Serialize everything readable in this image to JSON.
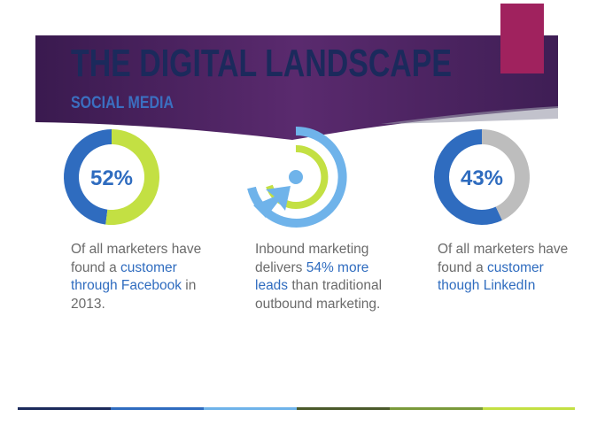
{
  "header": {
    "title": "THE DIGITAL LANDSCAPE",
    "subtitle": "SOCIAL MEDIA"
  },
  "stats": [
    {
      "value": 52,
      "label": "52%",
      "color": "#c3e043",
      "text": [
        {
          "text": "Of all marketers have found a "
        },
        {
          "text": "customer through Facebook",
          "highlight": true
        },
        {
          "text": " in 2013."
        }
      ]
    },
    {
      "text": [
        {
          "text": "Inbound marketing delivers "
        },
        {
          "text": "54% more leads",
          "highlight": true
        },
        {
          "text": " than traditional outbound marketing."
        }
      ]
    },
    {
      "value": 43,
      "label": "43%",
      "color": "#bdbdbd",
      "text": [
        {
          "text": "Of all marketers have found a "
        },
        {
          "text": "customer though LinkedIn",
          "highlight": true
        }
      ]
    }
  ]
}
